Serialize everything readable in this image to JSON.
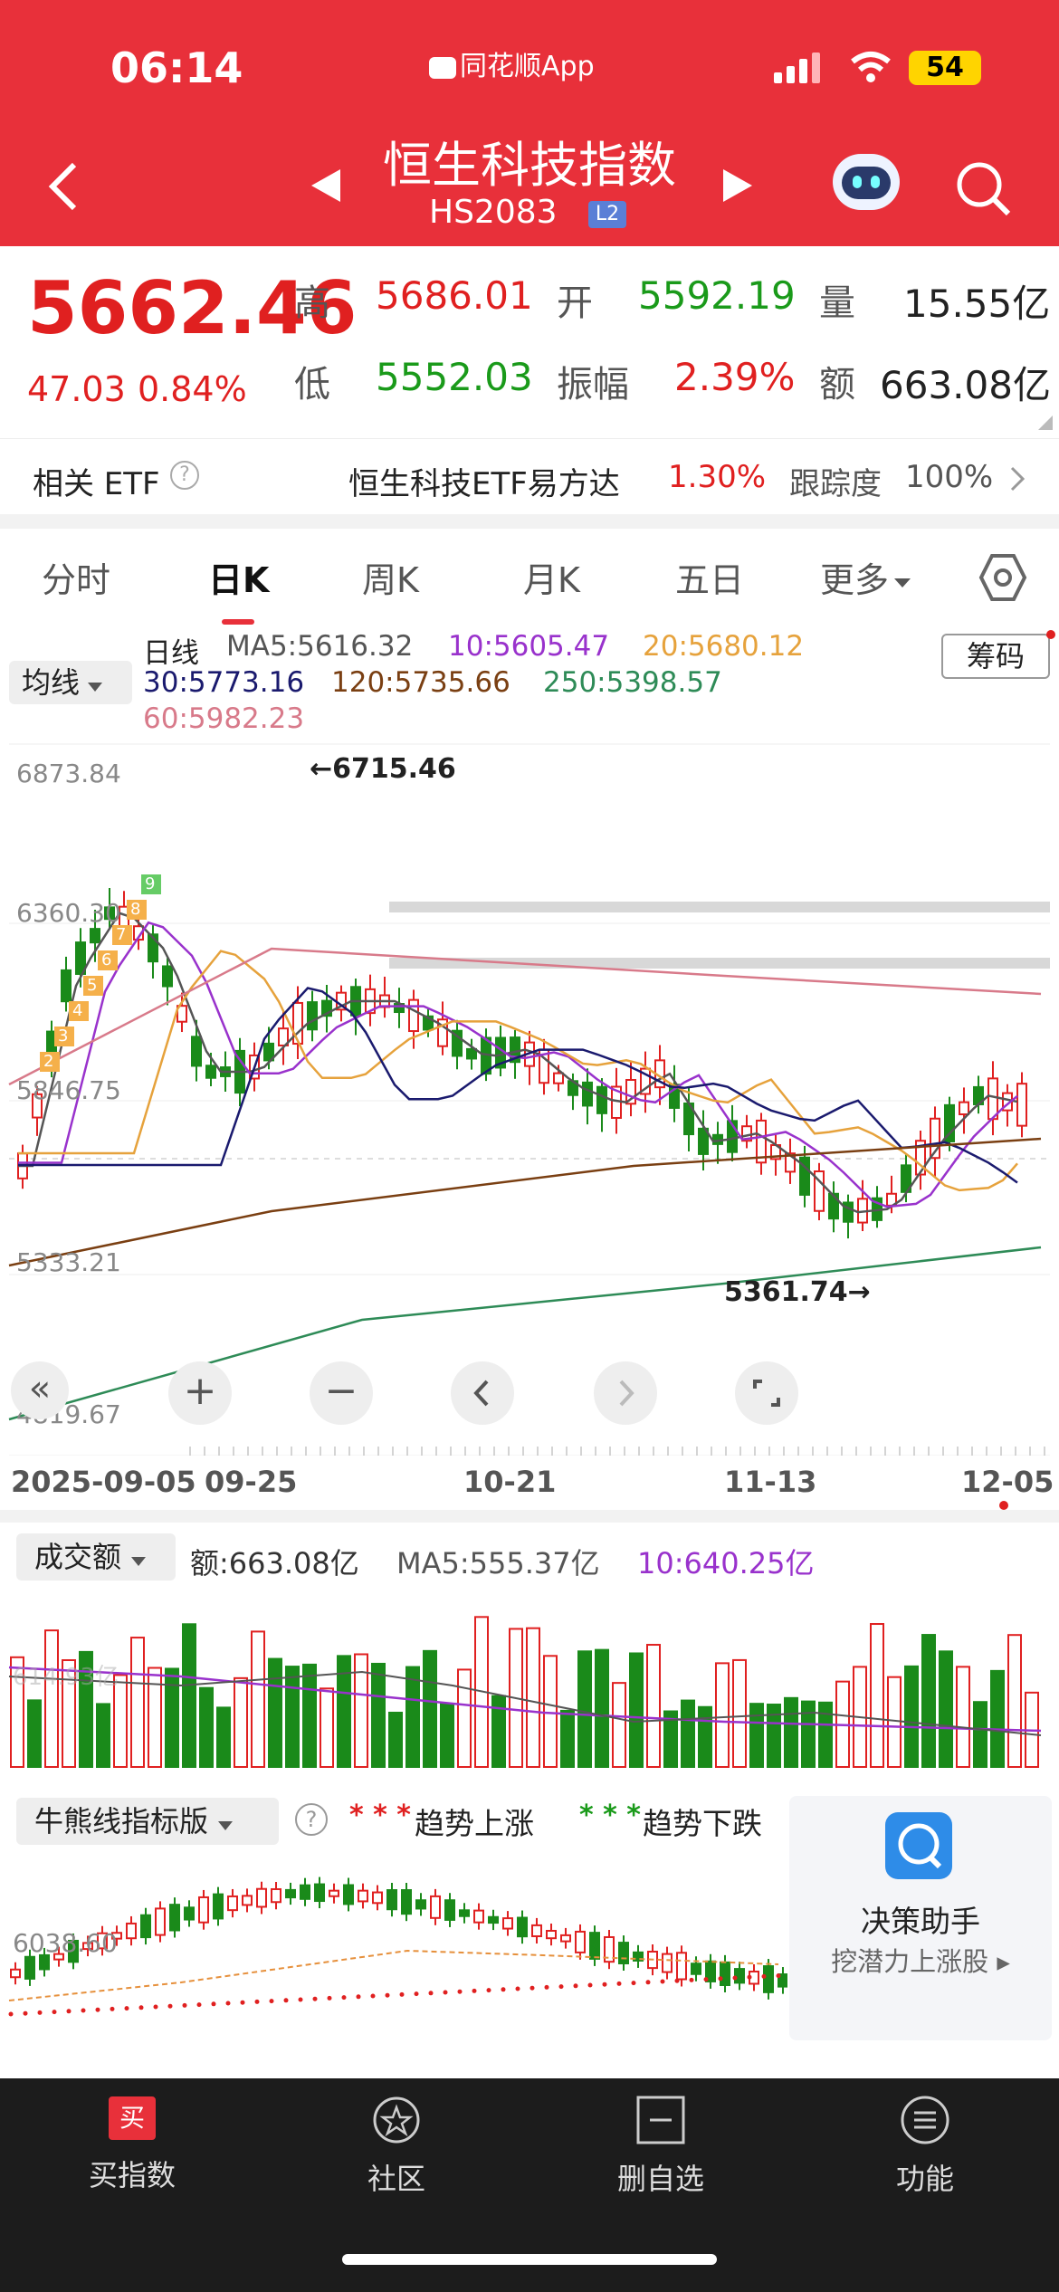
{
  "status": {
    "time": "06:14",
    "app": "同花顺App",
    "battery": "54"
  },
  "header": {
    "title": "恒生科技指数",
    "code": "HS2083",
    "badge": "L2"
  },
  "quote": {
    "price": "5662.46",
    "change": "47.03",
    "pct": "0.84%",
    "high_label": "高",
    "high": "5686.01",
    "open_label": "开",
    "open": "5592.19",
    "vol_label": "量",
    "vol": "15.55亿",
    "low_label": "低",
    "low": "5552.03",
    "amp_label": "振幅",
    "amp": "2.39%",
    "amt_label": "额",
    "amt": "663.08亿"
  },
  "etf": {
    "label": "相关 ETF",
    "name": "恒生科技ETF易方达",
    "pct": "1.30%",
    "track_label": "跟踪度",
    "track": "100%"
  },
  "tabs": [
    {
      "label": "分时"
    },
    {
      "label": "日K",
      "active": true
    },
    {
      "label": "周K"
    },
    {
      "label": "月K"
    },
    {
      "label": "五日"
    },
    {
      "label": "更多"
    }
  ],
  "ma": {
    "selector": "均线",
    "kind": "日线",
    "ma5": "MA5:5616.32",
    "ma10": "10:5605.47",
    "ma20": "20:5680.12",
    "ma30": "30:5773.16",
    "ma120": "120:5735.66",
    "ma250": "250:5398.57",
    "ma60": "60:5982.23",
    "chips": "筹码"
  },
  "kchart": {
    "ticks": [
      "6873.84",
      "6360.30",
      "5846.75",
      "5333.21",
      "4819.67"
    ],
    "max_label": "←6715.46",
    "min_label": "5361.74→",
    "tdnum": [
      "2",
      "3",
      "4",
      "5",
      "6",
      "7",
      "8",
      "9"
    ],
    "dates": [
      "2025-09-05",
      "09-25",
      "10-21",
      "11-13",
      "12-05"
    ]
  },
  "volume": {
    "selector": "成交额",
    "amt": "额:663.08亿",
    "ma5": "MA5:555.37亿",
    "ma10": "10:640.25亿",
    "tick": "614.93亿"
  },
  "bull": {
    "selector": "牛熊线指标版",
    "up_legend": "趋势上涨",
    "down_legend": "趋势下跌",
    "tick": "6038.60",
    "assistant_title": "决策助手",
    "assistant_sub": "挖潜力上涨股"
  },
  "bottom_nav": [
    {
      "label": "买指数",
      "icon": "买"
    },
    {
      "label": "社区"
    },
    {
      "label": "删自选"
    },
    {
      "label": "功能"
    }
  ],
  "colors": {
    "up": "#e02020",
    "down": "#1a8a1a",
    "header": "#e8303a",
    "ma5": "#555555",
    "ma10": "#9932cc",
    "ma20": "#e6a23c",
    "ma30": "#1a1a6e",
    "ma60": "#d87a8a",
    "ma120": "#7a3f12",
    "ma250": "#2e8b57"
  }
}
